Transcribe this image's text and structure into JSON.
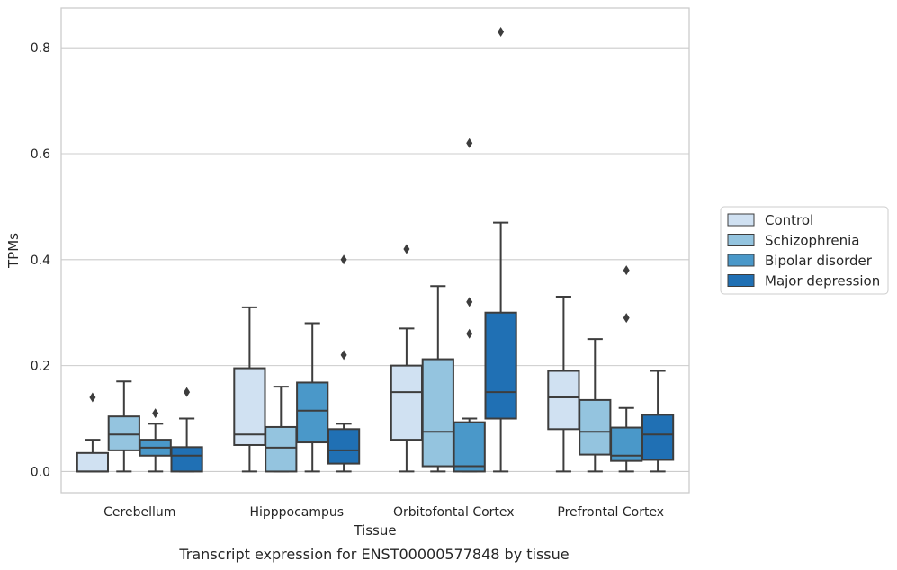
{
  "chart_data": {
    "type": "box",
    "title": "",
    "caption": "Transcript expression for ENST00000577848 by tissue",
    "xlabel": "Tissue",
    "ylabel": "TPMs",
    "ylim": [
      -0.04,
      0.875
    ],
    "yticks": [
      0.0,
      0.2,
      0.4,
      0.6,
      0.8
    ],
    "ytick_labels": [
      "0.0",
      "0.2",
      "0.4",
      "0.6",
      "0.8"
    ],
    "grid": "horizontal",
    "legend_position": "right",
    "categories": [
      "Cerebellum",
      "Hipppocampus",
      "Orbitofontal Cortex",
      "Prefrontal Cortex"
    ],
    "series": [
      {
        "name": "Control",
        "color": "#d0e1f2",
        "boxes": [
          {
            "whislo": 0.0,
            "q1": 0.0,
            "med": 0.0,
            "q3": 0.035,
            "whishi": 0.06,
            "fliers": [
              0.14
            ]
          },
          {
            "whislo": 0.0,
            "q1": 0.05,
            "med": 0.07,
            "q3": 0.195,
            "whishi": 0.31,
            "fliers": []
          },
          {
            "whislo": 0.0,
            "q1": 0.06,
            "med": 0.15,
            "q3": 0.2,
            "whishi": 0.27,
            "fliers": [
              0.42
            ]
          },
          {
            "whislo": 0.0,
            "q1": 0.08,
            "med": 0.14,
            "q3": 0.19,
            "whishi": 0.33,
            "fliers": []
          }
        ]
      },
      {
        "name": "Schizophrenia",
        "color": "#94c4df",
        "boxes": [
          {
            "whislo": 0.0,
            "q1": 0.04,
            "med": 0.07,
            "q3": 0.104,
            "whishi": 0.17,
            "fliers": []
          },
          {
            "whislo": 0.0,
            "q1": 0.0,
            "med": 0.045,
            "q3": 0.084,
            "whishi": 0.16,
            "fliers": []
          },
          {
            "whislo": 0.0,
            "q1": 0.01,
            "med": 0.075,
            "q3": 0.212,
            "whishi": 0.35,
            "fliers": []
          },
          {
            "whislo": 0.0,
            "q1": 0.032,
            "med": 0.075,
            "q3": 0.135,
            "whishi": 0.25,
            "fliers": []
          }
        ]
      },
      {
        "name": "Bipolar disorder",
        "color": "#4a98c9",
        "boxes": [
          {
            "whislo": 0.0,
            "q1": 0.03,
            "med": 0.045,
            "q3": 0.06,
            "whishi": 0.09,
            "fliers": [
              0.11
            ]
          },
          {
            "whislo": 0.0,
            "q1": 0.055,
            "med": 0.115,
            "q3": 0.168,
            "whishi": 0.28,
            "fliers": []
          },
          {
            "whislo": 0.0,
            "q1": 0.0,
            "med": 0.01,
            "q3": 0.093,
            "whishi": 0.1,
            "fliers": [
              0.26,
              0.32,
              0.62
            ]
          },
          {
            "whislo": 0.0,
            "q1": 0.02,
            "med": 0.03,
            "q3": 0.083,
            "whishi": 0.12,
            "fliers": [
              0.29,
              0.38
            ]
          }
        ]
      },
      {
        "name": "Major depression",
        "color": "#2070b4",
        "boxes": [
          {
            "whislo": 0.0,
            "q1": 0.0,
            "med": 0.03,
            "q3": 0.046,
            "whishi": 0.1,
            "fliers": [
              0.15
            ]
          },
          {
            "whislo": 0.0,
            "q1": 0.015,
            "med": 0.04,
            "q3": 0.08,
            "whishi": 0.09,
            "fliers": [
              0.22,
              0.4
            ]
          },
          {
            "whislo": 0.0,
            "q1": 0.1,
            "med": 0.15,
            "q3": 0.3,
            "whishi": 0.47,
            "fliers": [
              0.83
            ]
          },
          {
            "whislo": 0.0,
            "q1": 0.022,
            "med": 0.07,
            "q3": 0.107,
            "whishi": 0.19,
            "fliers": []
          }
        ]
      }
    ]
  }
}
